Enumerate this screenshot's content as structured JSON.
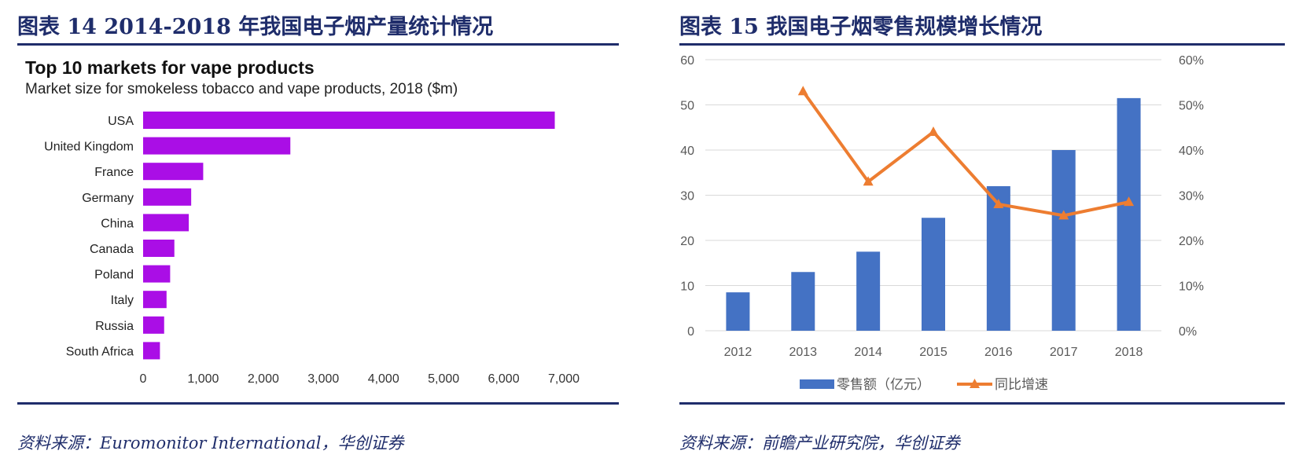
{
  "left": {
    "title": "图表 14   2014-2018 年我国电子烟产量统计情况",
    "source": "资料来源：Euromonitor International，华创证券"
  },
  "right": {
    "title": "图表 15   我国电子烟零售规模增长情况",
    "source": "资料来源：前瞻产业研究院，华创证券"
  },
  "colors": {
    "header_navy": "#1f2d6b",
    "bar_purple": "#aa0ee6",
    "bar_blue": "#4472c4",
    "line_orange": "#ed7d31"
  },
  "chart_data": [
    {
      "type": "bar",
      "orientation": "horizontal",
      "title": "Top 10 markets for vape products",
      "subtitle": "Market size for smokeless tobacco and vape products, 2018 ($m)",
      "categories": [
        "USA",
        "United Kingdom",
        "France",
        "Germany",
        "China",
        "Canada",
        "Poland",
        "Italy",
        "Russia",
        "South Africa"
      ],
      "values": [
        6850,
        2450,
        1000,
        800,
        760,
        520,
        450,
        390,
        350,
        280
      ],
      "xlim": [
        0,
        7000
      ],
      "xticks": [
        0,
        1000,
        2000,
        3000,
        4000,
        5000,
        6000,
        7000
      ],
      "xtick_labels": [
        "0",
        "1,000",
        "2,000",
        "3,000",
        "4,000",
        "5,000",
        "6,000",
        "7,000"
      ],
      "xlabel": "",
      "ylabel": "",
      "grid": false
    },
    {
      "type": "bar+line",
      "categories": [
        "2012",
        "2013",
        "2014",
        "2015",
        "2016",
        "2017",
        "2018"
      ],
      "series": [
        {
          "name": "零售额（亿元）",
          "type": "bar",
          "axis": "left",
          "values": [
            8.5,
            13,
            17.5,
            25,
            32,
            40,
            51.5
          ]
        },
        {
          "name": "同比增速",
          "type": "line",
          "axis": "right",
          "values": [
            null,
            53,
            33,
            44,
            28,
            25.5,
            28.5
          ]
        }
      ],
      "ylim_left": [
        0,
        60
      ],
      "yticks_left": [
        "0",
        "10",
        "20",
        "30",
        "40",
        "50",
        "60"
      ],
      "ylim_right": [
        0,
        60
      ],
      "yticks_right": [
        "0%",
        "10%",
        "20%",
        "30%",
        "40%",
        "50%",
        "60%"
      ],
      "grid": true,
      "legend": "bottom"
    }
  ]
}
